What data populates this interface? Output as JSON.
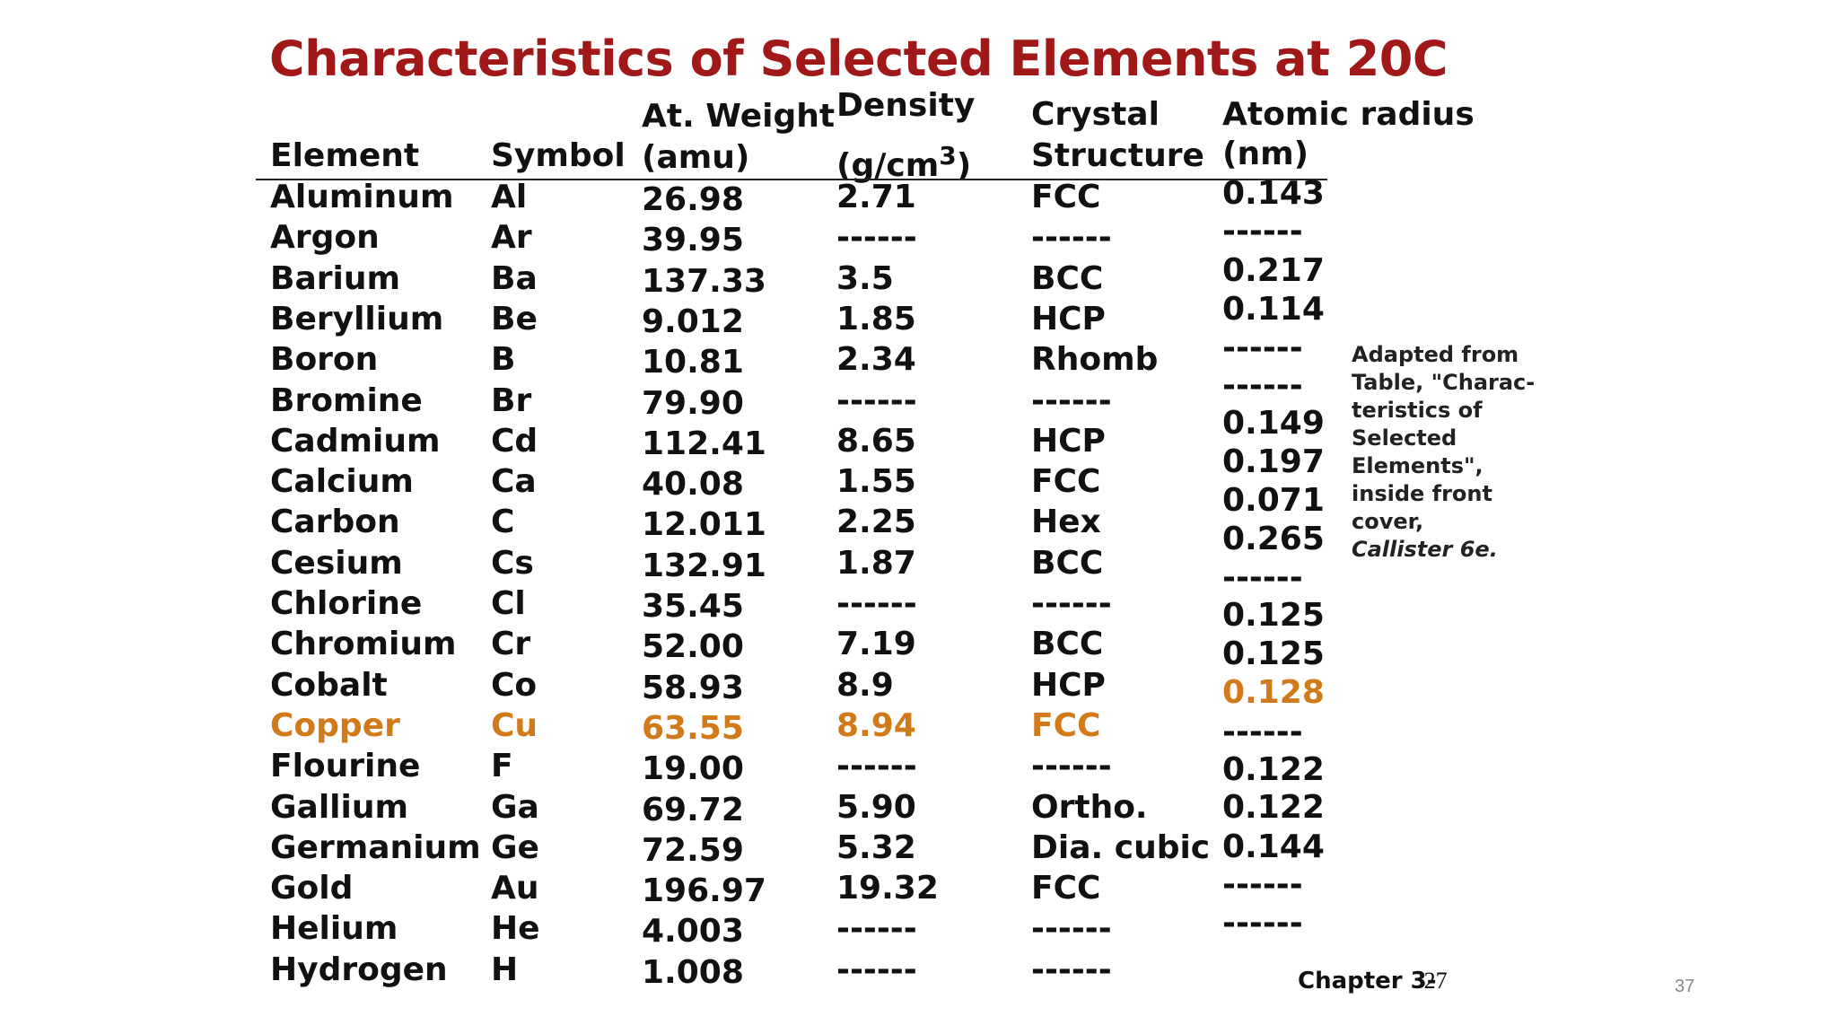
{
  "title": "Characteristics of Selected Elements at 20C",
  "headers": {
    "element": "Element",
    "symbol": "Symbol",
    "weight_l1": "At. Weight",
    "weight_l2": "(amu)",
    "density_l1": "Density",
    "density_l2": "(g/cm",
    "density_sup": "3",
    "density_close": ")",
    "crystal_l1": "Crystal",
    "crystal_l2": "Structure",
    "radius_l1": "Atomic radius",
    "radius_l2": "(nm)"
  },
  "rows": [
    {
      "element": "Aluminum",
      "symbol": "Al",
      "weight": "26.98",
      "density": "2.71",
      "structure": "FCC"
    },
    {
      "element": "Argon",
      "symbol": "Ar",
      "weight": "39.95",
      "density": "------",
      "structure": "------"
    },
    {
      "element": "Barium",
      "symbol": "Ba",
      "weight": "137.33",
      "density": "3.5",
      "structure": "BCC"
    },
    {
      "element": "Beryllium",
      "symbol": "Be",
      "weight": "9.012",
      "density": "1.85",
      "structure": "HCP"
    },
    {
      "element": "Boron",
      "symbol": "B",
      "weight": "10.81",
      "density": "2.34",
      "structure": "Rhomb"
    },
    {
      "element": "Bromine",
      "symbol": "Br",
      "weight": "79.90",
      "density": "------",
      "structure": "------"
    },
    {
      "element": "Cadmium",
      "symbol": "Cd",
      "weight": "112.41",
      "density": "8.65",
      "structure": "HCP"
    },
    {
      "element": "Calcium",
      "symbol": "Ca",
      "weight": "40.08",
      "density": "1.55",
      "structure": "FCC"
    },
    {
      "element": "Carbon",
      "symbol": "C",
      "weight": "12.011",
      "density": "2.25",
      "structure": "Hex"
    },
    {
      "element": "Cesium",
      "symbol": "Cs",
      "weight": "132.91",
      "density": "1.87",
      "structure": "BCC"
    },
    {
      "element": "Chlorine",
      "symbol": "Cl",
      "weight": "35.45",
      "density": "------",
      "structure": "------"
    },
    {
      "element": "Chromium",
      "symbol": "Cr",
      "weight": "52.00",
      "density": "7.19",
      "structure": "BCC"
    },
    {
      "element": "Cobalt",
      "symbol": "Co",
      "weight": "58.93",
      "density": "8.9",
      "structure": "HCP"
    },
    {
      "element": "Copper",
      "symbol": "Cu",
      "weight": "63.55",
      "density": "8.94",
      "structure": "FCC"
    },
    {
      "element": "Flourine",
      "symbol": "F",
      "weight": "19.00",
      "density": "------",
      "structure": "------"
    },
    {
      "element": "Gallium",
      "symbol": "Ga",
      "weight": "69.72",
      "density": "5.90",
      "structure": "Ortho."
    },
    {
      "element": "Germanium",
      "symbol": "Ge",
      "weight": "72.59",
      "density": "5.32",
      "structure": "Dia. cubic"
    },
    {
      "element": "Gold",
      "symbol": "Au",
      "weight": "196.97",
      "density": "19.32",
      "structure": "FCC"
    },
    {
      "element": "Helium",
      "symbol": "He",
      "weight": "4.003",
      "density": "------",
      "structure": "------"
    },
    {
      "element": "Hydrogen",
      "symbol": "H",
      "weight": "1.008",
      "density": "------",
      "structure": "------"
    }
  ],
  "radii": [
    "0.143",
    "------",
    "0.217",
    "0.114",
    "------",
    "------",
    "0.149",
    "0.197",
    "0.071",
    "0.265",
    "------",
    "0.125",
    "0.125",
    "0.128",
    "------",
    "0.122",
    "0.122",
    "0.144",
    "------",
    "------"
  ],
  "highlight_color": "#d2791a",
  "title_color": "#a01818",
  "note": {
    "lines": [
      "Adapted from",
      "Table, \"Charac-",
      "teristics of",
      "Selected",
      "Elements\",",
      "inside front",
      "cover,"
    ],
    "italic": "Callister 6e."
  },
  "chapter_label": "Chapter 3-",
  "chapter_overlap": "27",
  "page_number": "37"
}
